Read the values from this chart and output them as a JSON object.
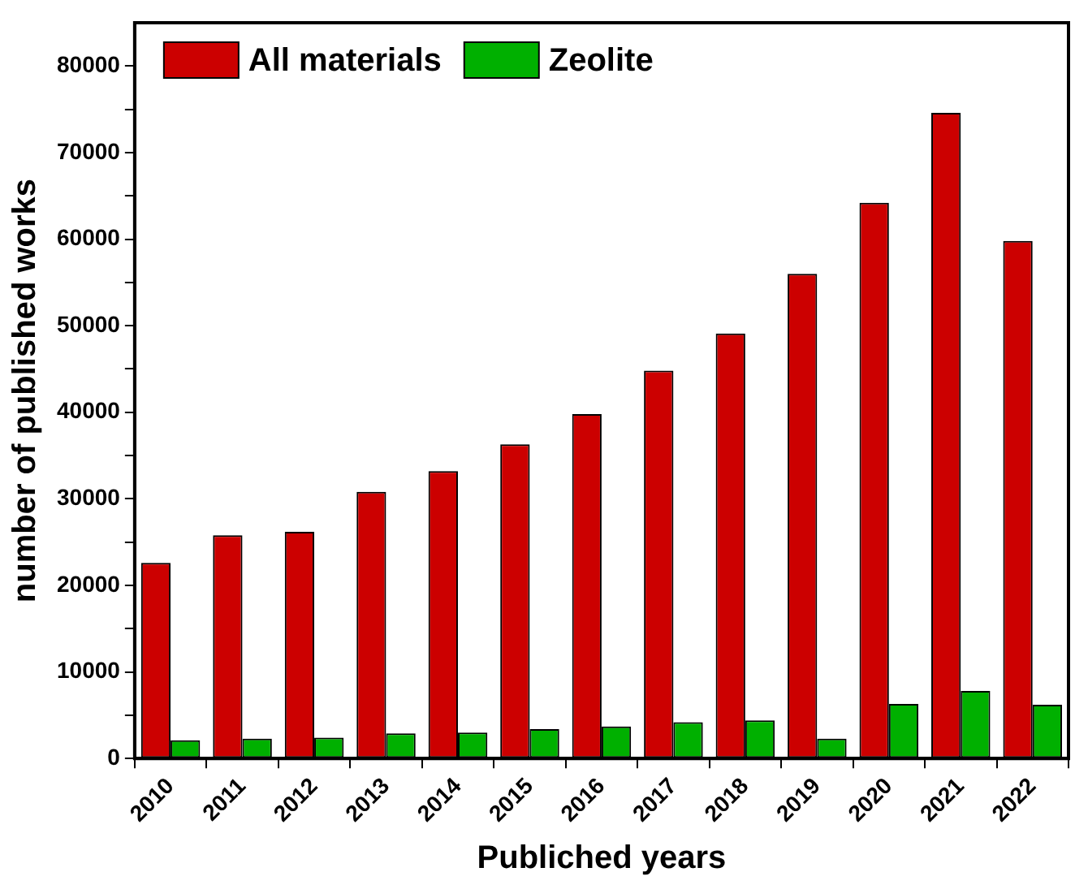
{
  "chart_data": {
    "type": "bar",
    "xlabel": "Publiched years",
    "ylabel": "number of published works",
    "categories": [
      "2010",
      "2011",
      "2012",
      "2013",
      "2014",
      "2015",
      "2016",
      "2017",
      "2018",
      "2019",
      "2020",
      "2021",
      "2022"
    ],
    "series": [
      {
        "name": "All materials",
        "color": "#cc0000",
        "values": [
          22600,
          25800,
          26200,
          30800,
          33200,
          36300,
          39800,
          44800,
          49100,
          56000,
          64200,
          74600,
          59800
        ]
      },
      {
        "name": "Zeolite",
        "color": "#00b000",
        "values": [
          2100,
          2300,
          2400,
          2900,
          3000,
          3400,
          3700,
          4200,
          4400,
          2300,
          6300,
          7800,
          6200
        ]
      }
    ],
    "ylim": [
      0,
      85000
    ],
    "yticks": [
      0,
      {
        "value": 5000,
        "label": null
      },
      10000,
      {
        "value": 15000,
        "label": null
      },
      20000,
      {
        "value": 25000,
        "label": null
      },
      30000,
      {
        "value": 35000,
        "label": null
      },
      40000,
      {
        "value": 45000,
        "label": null
      },
      50000,
      {
        "value": 55000,
        "label": null
      },
      60000,
      {
        "value": 65000,
        "label": null
      },
      70000,
      {
        "value": 75000,
        "label": null
      },
      80000
    ],
    "grid": false,
    "legend": "top left"
  }
}
